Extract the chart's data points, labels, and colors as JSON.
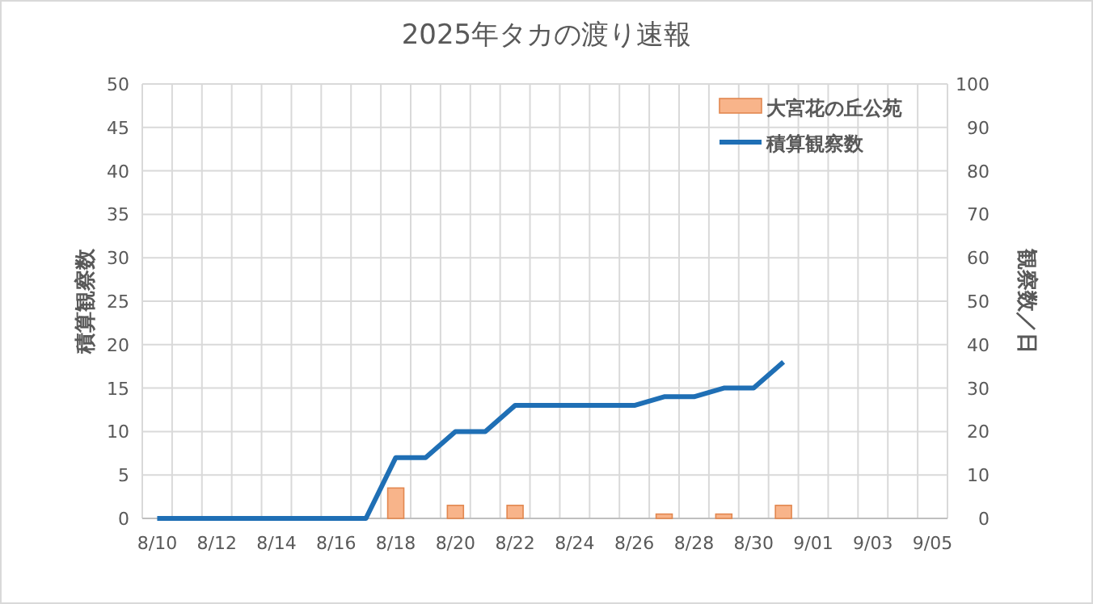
{
  "chart_data": {
    "type": "bar",
    "title": "2025年タカの渡り速報",
    "ylabel": "積算観察数",
    "y2label": "観察数／日",
    "categories": [
      "8/10",
      null,
      "8/12",
      null,
      "8/14",
      null,
      "8/16",
      null,
      "8/18",
      null,
      "8/20",
      null,
      "8/22",
      null,
      "8/24",
      null,
      "8/26",
      null,
      "8/28",
      null,
      "8/30",
      null,
      "9/01",
      null,
      "9/03",
      null,
      "9/05"
    ],
    "series": [
      {
        "name": "大宮花の丘公苑",
        "axis": "y2",
        "color": "#f8b48a",
        "values": [
          0,
          0,
          0,
          0,
          0,
          0,
          0,
          0,
          7,
          0,
          3,
          0,
          3,
          0,
          0,
          0,
          0,
          1,
          0,
          1,
          0,
          3,
          null,
          null,
          null,
          null,
          null
        ]
      },
      {
        "name": "積算観察数",
        "type": "line",
        "color": "#1f6fb5",
        "values": [
          0,
          0,
          0,
          0,
          0,
          0,
          0,
          0,
          7,
          7,
          10,
          10,
          13,
          13,
          13,
          13,
          13,
          14,
          14,
          15,
          15,
          18,
          null,
          null,
          null,
          null,
          null
        ]
      }
    ],
    "ylim": [
      0,
      50
    ],
    "yticks": [
      0,
      5,
      10,
      15,
      20,
      25,
      30,
      35,
      40,
      45,
      50
    ],
    "y2lim": [
      0,
      100
    ],
    "y2ticks": [
      0,
      10,
      20,
      30,
      40,
      50,
      60,
      70,
      80,
      90,
      100
    ],
    "grid": true,
    "legend": "top right",
    "marker": "none"
  }
}
